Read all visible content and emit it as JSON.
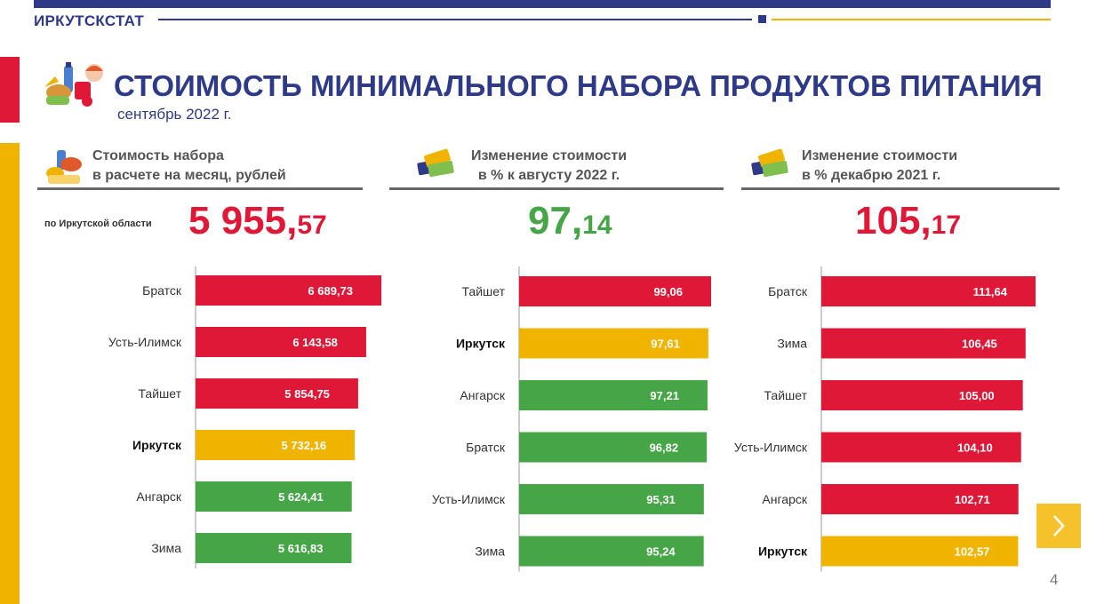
{
  "header": {
    "org": "ИРКУТСКСТАТ"
  },
  "title": "СТОИМОСТЬ МИНИМАЛЬНОГО НАБОРА ПРОДУКТОВ ПИТАНИЯ",
  "subtitle": "сентябрь 2022 г.",
  "columns": [
    {
      "heading_line1": "Стоимость набора",
      "heading_line2": "в расчете на месяц, рублей",
      "summary_label": "по Иркутской области",
      "summary_int": "5 955,",
      "summary_dec": "57",
      "summary_color": "#e01837",
      "icon": "food-basket-icon"
    },
    {
      "heading_line1": "Изменение стоимости",
      "heading_line2": "в % к августу 2022 г.",
      "summary_int": "97,",
      "summary_dec": "14",
      "summary_color": "#46a546",
      "icon": "money-cards-icon"
    },
    {
      "heading_line1": "Изменение стоимости",
      "heading_line2": "в % декабрю 2021 г.",
      "summary_int": "105,",
      "summary_dec": "17",
      "summary_color": "#e01837",
      "icon": "money-cards-icon"
    }
  ],
  "colors": {
    "red": "#e01837",
    "yellow": "#f0b400",
    "green": "#46a546",
    "brand": "#2e3a87"
  },
  "chart_data": [
    {
      "type": "bar",
      "orientation": "horizontal",
      "categories": [
        "Братск",
        "Усть-Илимск",
        "Тайшет",
        "Иркутск",
        "Ангарск",
        "Зима"
      ],
      "values": [
        6689.73,
        6143.58,
        5854.75,
        5732.16,
        5624.41,
        5616.83
      ],
      "labels": [
        "6 689,73",
        "6 143,58",
        "5 854,75",
        "5 732,16",
        "5 624,41",
        "5 616,83"
      ],
      "bar_colors": [
        "red",
        "red",
        "red",
        "yellow",
        "green",
        "green"
      ],
      "highlight": "Иркутск"
    },
    {
      "type": "bar",
      "orientation": "horizontal",
      "categories": [
        "Тайшет",
        "Иркутск",
        "Ангарск",
        "Братск",
        "Усть-Илимск",
        "Зима"
      ],
      "values": [
        99.06,
        97.61,
        97.21,
        96.82,
        95.31,
        95.24
      ],
      "labels": [
        "99,06",
        "97,61",
        "97,21",
        "96,82",
        "95,31",
        "95,24"
      ],
      "bar_colors": [
        "red",
        "yellow",
        "green",
        "green",
        "green",
        "green"
      ],
      "highlight": "Иркутск"
    },
    {
      "type": "bar",
      "orientation": "horizontal",
      "categories": [
        "Братск",
        "Зима",
        "Тайшет",
        "Усть-Илимск",
        "Ангарск",
        "Иркутск"
      ],
      "values": [
        111.64,
        106.45,
        105.0,
        104.1,
        102.71,
        102.57
      ],
      "labels": [
        "111,64",
        "106,45",
        "105,00",
        "104,10",
        "102,71",
        "102,57"
      ],
      "bar_colors": [
        "red",
        "red",
        "red",
        "red",
        "red",
        "yellow"
      ],
      "highlight": "Иркутск"
    }
  ],
  "page_number": "4",
  "nav": {
    "next_icon": "chevron-right-icon"
  }
}
